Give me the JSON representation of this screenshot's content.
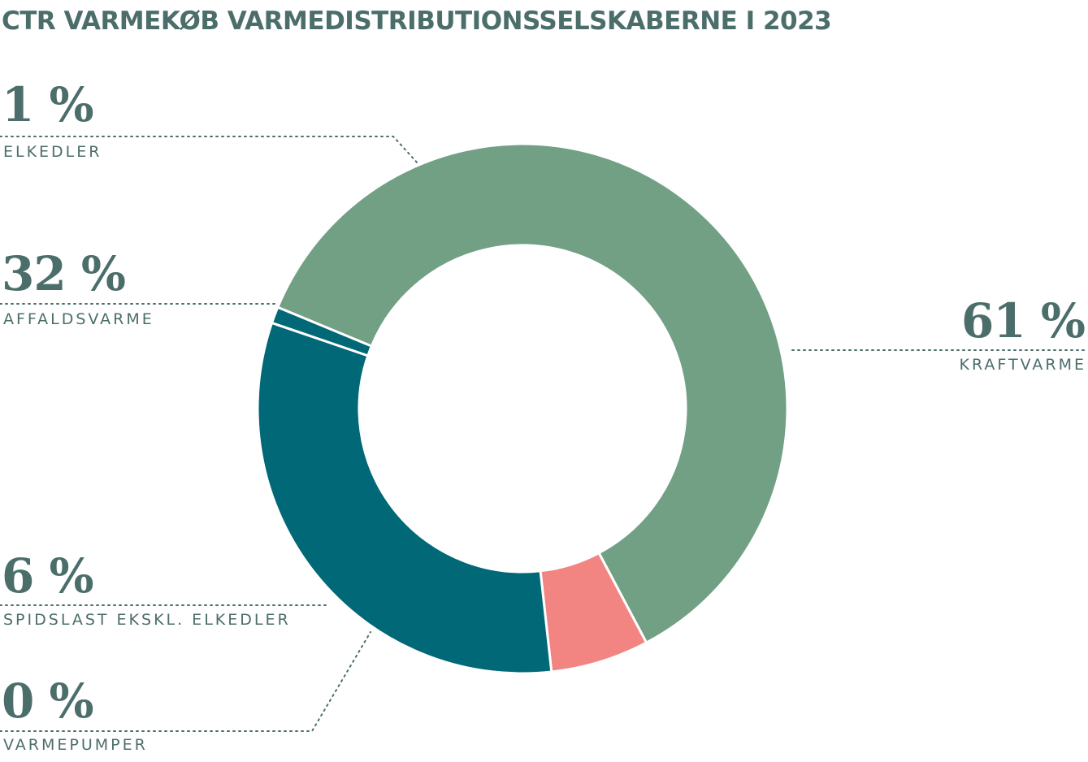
{
  "title": "CTR VARMEKØB VARMEDISTRIBUTIONSSELSKABERNE I 2023",
  "chart_data": {
    "type": "pie",
    "title": "CTR VARMEKØB VARMEDISTRIBUTIONSSELSKABERNE I 2023",
    "categories": [
      "KRAFTVARME",
      "VARMEPUMPER",
      "SPIDSLAST EKSKL. ELKEDLER",
      "AFFALDSVARME",
      "ELKEDLER"
    ],
    "values": [
      61,
      0,
      6,
      32,
      1
    ],
    "labels": [
      "61 %",
      "0 %",
      "6 %",
      "32 %",
      "1 %"
    ],
    "colors": [
      "#71a085",
      "#71a085",
      "#f28582",
      "#006876",
      "#006876"
    ],
    "style": "donut"
  },
  "labels": {
    "kraftvarme": {
      "pct": "61 %",
      "name": "KRAFTVARME"
    },
    "elkedler": {
      "pct": "1 %",
      "name": "ELKEDLER"
    },
    "affaldsvarme": {
      "pct": "32 %",
      "name": "AFFALDSVARME"
    },
    "spidslast": {
      "pct": "6 %",
      "name": "SPIDSLAST EKSKL. ELKEDLER"
    },
    "varmepumper": {
      "pct": "0 %",
      "name": "VARMEPUMPER"
    }
  }
}
